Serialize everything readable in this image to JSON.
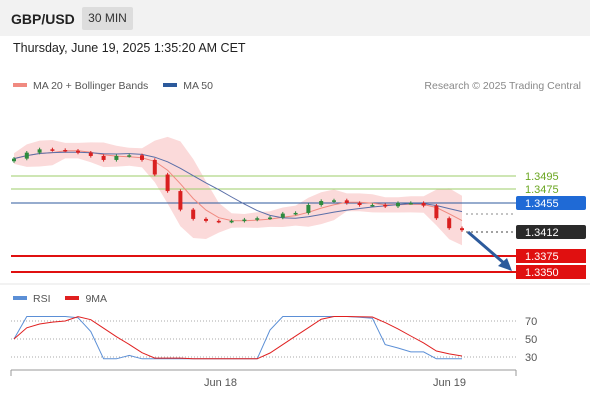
{
  "header": {
    "symbol": "GBP/USD",
    "timeframe_button": "30 MIN"
  },
  "datetime": "Thursday, June 19, 2025 1:35:20 AM CET",
  "legend": {
    "items": [
      {
        "label": "MA 20 + Bollinger Bands",
        "color": "#f08a80"
      },
      {
        "label": "MA 50",
        "color": "#2c5a9c"
      }
    ],
    "copyright": "Research © 2025 Trading Central"
  },
  "price_labels": {
    "resistance_2": "1.3495",
    "resistance_1": "1.3475",
    "pivot": "1.3455",
    "last": "1.3412",
    "support_1": "1.3375",
    "support_2": "1.3350"
  },
  "rsi_legend": {
    "items": [
      {
        "label": "RSI",
        "color": "#5b8fd6"
      },
      {
        "label": "9MA",
        "color": "#e02020"
      }
    ]
  },
  "rsi_axis": [
    "70",
    "50",
    "30"
  ],
  "x_axis": [
    "Jun 18",
    "Jun 19"
  ],
  "colors": {
    "bull": "#2e8b3e",
    "bear": "#d92020",
    "pivot_line": "#2c5a9c",
    "resistance_line": "#9ccc6a",
    "resistance_text": "#6aa620",
    "support_line": "#e01010",
    "band_fill": "#fbdada",
    "arrow": "#2c5a9c"
  },
  "chart_data": {
    "type": "candlestick",
    "instrument": "GBP/USD",
    "interval": "30 MIN",
    "price_levels": [
      1.3495,
      1.3475,
      1.3455,
      1.3412,
      1.3375,
      1.335
    ],
    "candles_close_estimate": [
      1.3522,
      1.3531,
      1.3536,
      1.3535,
      1.3534,
      1.3531,
      1.3526,
      1.352,
      1.3526,
      1.3527,
      1.352,
      1.3498,
      1.3473,
      1.3445,
      1.3431,
      1.3428,
      1.3427,
      1.3428,
      1.343,
      1.3432,
      1.3433,
      1.3439,
      1.344,
      1.3452,
      1.3458,
      1.3459,
      1.3455,
      1.3452,
      1.3452,
      1.345,
      1.3455,
      1.3455,
      1.3451,
      1.3432,
      1.3417,
      1.3414
    ],
    "rsi": {
      "axis_ticks": [
        70,
        50,
        30
      ]
    },
    "x_labels": [
      "Jun 18",
      "Jun 19"
    ]
  }
}
